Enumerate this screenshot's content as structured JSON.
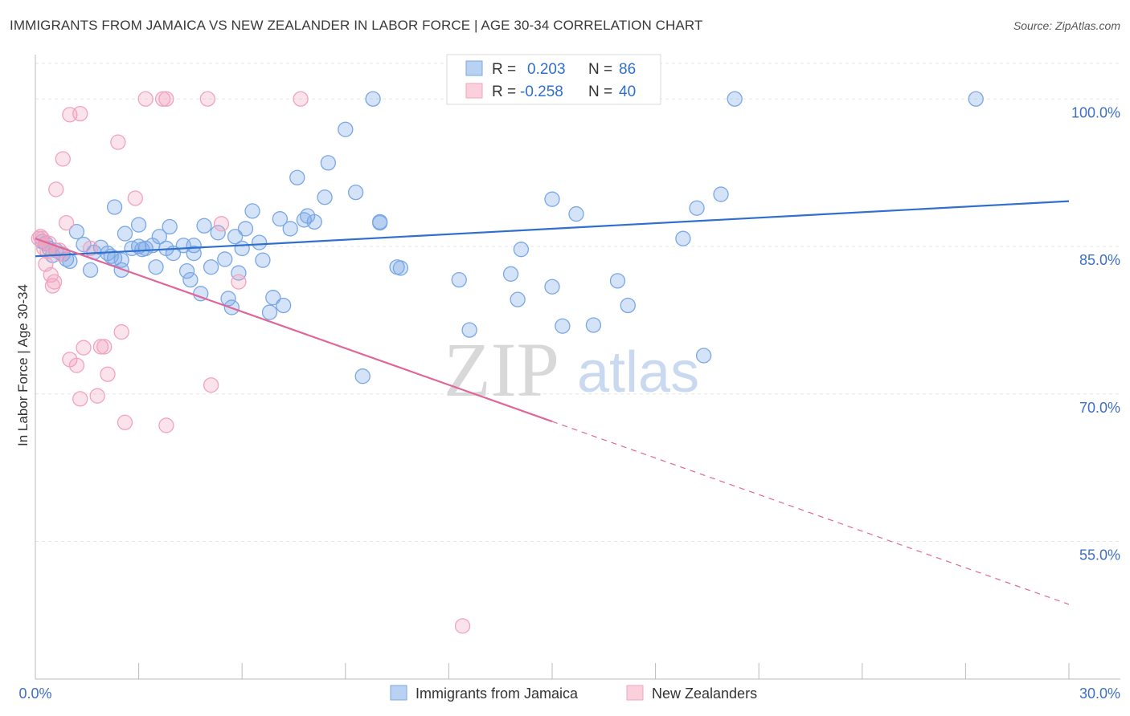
{
  "title": "IMMIGRANTS FROM JAMAICA VS NEW ZEALANDER IN LABOR FORCE | AGE 30-34 CORRELATION CHART",
  "source": "Source: ZipAtlas.com",
  "chart_data": {
    "type": "scatter",
    "xlabel": "",
    "ylabel": "In Labor Force | Age 30-34",
    "xlim": [
      0.0,
      30.0
    ],
    "ylim": [
      41.0,
      105.0
    ],
    "x_tick_labels": [
      "0.0%",
      "30.0%"
    ],
    "y_ticks": [
      {
        "value": 100.0,
        "label": "100.0%"
      },
      {
        "value": 85.0,
        "label": "85.0%"
      },
      {
        "value": 70.0,
        "label": "70.0%"
      },
      {
        "value": 55.0,
        "label": "55.0%"
      }
    ],
    "grid": true,
    "legend_position": "bottom",
    "stats": [
      {
        "r_label": "R =",
        "r_value": "0.203",
        "n_label": "N =",
        "n_value": "86"
      },
      {
        "r_label": "R =",
        "r_value": "-0.258",
        "n_label": "N =",
        "n_value": "40"
      }
    ],
    "series": [
      {
        "name": "Immigrants from Jamaica",
        "color": "#7aa7e6",
        "line_color": "#2f6fce",
        "trend": {
          "x": [
            0.0,
            30.0
          ],
          "y": [
            84.0,
            89.6
          ]
        },
        "points": [
          [
            0.2,
            85.5
          ],
          [
            0.3,
            85.3
          ],
          [
            0.4,
            84.8
          ],
          [
            0.5,
            84.1
          ],
          [
            0.6,
            84.6
          ],
          [
            0.8,
            84.2
          ],
          [
            0.9,
            83.7
          ],
          [
            1.0,
            83.5
          ],
          [
            1.2,
            86.5
          ],
          [
            1.4,
            85.2
          ],
          [
            1.6,
            82.6
          ],
          [
            1.7,
            84.4
          ],
          [
            1.9,
            84.9
          ],
          [
            2.1,
            84.3
          ],
          [
            2.2,
            84.0
          ],
          [
            2.3,
            83.8
          ],
          [
            2.5,
            83.6
          ],
          [
            2.3,
            89.0
          ],
          [
            2.5,
            82.6
          ],
          [
            2.6,
            86.3
          ],
          [
            2.8,
            84.8
          ],
          [
            3.0,
            85.0
          ],
          [
            3.0,
            87.2
          ],
          [
            3.1,
            84.7
          ],
          [
            3.2,
            84.8
          ],
          [
            3.4,
            85.1
          ],
          [
            3.5,
            82.9
          ],
          [
            3.6,
            86.0
          ],
          [
            3.8,
            84.8
          ],
          [
            3.9,
            87.0
          ],
          [
            4.0,
            84.3
          ],
          [
            4.3,
            85.1
          ],
          [
            4.4,
            82.5
          ],
          [
            4.5,
            81.6
          ],
          [
            4.6,
            84.3
          ],
          [
            4.6,
            85.1
          ],
          [
            4.8,
            80.2
          ],
          [
            4.9,
            87.1
          ],
          [
            5.1,
            82.9
          ],
          [
            5.3,
            86.4
          ],
          [
            5.5,
            83.7
          ],
          [
            5.6,
            79.7
          ],
          [
            5.7,
            78.8
          ],
          [
            5.8,
            86.0
          ],
          [
            5.9,
            82.3
          ],
          [
            6.0,
            84.8
          ],
          [
            6.1,
            86.8
          ],
          [
            6.3,
            88.6
          ],
          [
            6.5,
            85.4
          ],
          [
            6.6,
            83.6
          ],
          [
            6.8,
            78.3
          ],
          [
            6.9,
            79.8
          ],
          [
            7.1,
            87.8
          ],
          [
            7.2,
            79.0
          ],
          [
            7.4,
            86.8
          ],
          [
            7.6,
            92.0
          ],
          [
            7.8,
            87.7
          ],
          [
            7.9,
            88.1
          ],
          [
            8.1,
            87.5
          ],
          [
            8.4,
            90.0
          ],
          [
            8.5,
            93.5
          ],
          [
            9.0,
            96.9
          ],
          [
            9.3,
            90.5
          ],
          [
            9.5,
            71.8
          ],
          [
            9.8,
            100.0
          ],
          [
            10.0,
            87.5
          ],
          [
            10.0,
            87.4
          ],
          [
            10.5,
            82.9
          ],
          [
            10.6,
            82.8
          ],
          [
            12.3,
            81.6
          ],
          [
            12.6,
            76.5
          ],
          [
            13.8,
            82.2
          ],
          [
            14.0,
            79.6
          ],
          [
            14.1,
            84.7
          ],
          [
            15.0,
            89.8
          ],
          [
            15.0,
            80.9
          ],
          [
            15.3,
            76.9
          ],
          [
            15.7,
            88.3
          ],
          [
            16.2,
            77.0
          ],
          [
            16.9,
            81.5
          ],
          [
            17.2,
            79.0
          ],
          [
            18.8,
            85.8
          ],
          [
            19.2,
            88.9
          ],
          [
            19.4,
            73.9
          ],
          [
            19.9,
            90.3
          ],
          [
            20.3,
            100.0
          ],
          [
            27.3,
            100.0
          ]
        ]
      },
      {
        "name": "New Zealanders",
        "color": "#f2a3bd",
        "line_color": "#e0669a",
        "trend": {
          "x": [
            0.0,
            15.0
          ],
          "y": [
            85.8,
            67.2
          ]
        },
        "trend_dashed": {
          "x": [
            15.0,
            30.0
          ],
          "y": [
            67.2,
            48.6
          ]
        },
        "points": [
          [
            0.1,
            85.8
          ],
          [
            0.15,
            86.0
          ],
          [
            0.2,
            85.8
          ],
          [
            0.25,
            84.8
          ],
          [
            0.3,
            83.2
          ],
          [
            0.35,
            84.5
          ],
          [
            0.4,
            85.3
          ],
          [
            0.45,
            82.1
          ],
          [
            0.5,
            81.0
          ],
          [
            0.55,
            81.4
          ],
          [
            0.6,
            90.8
          ],
          [
            0.7,
            84.6
          ],
          [
            0.75,
            84.2
          ],
          [
            0.8,
            93.9
          ],
          [
            0.9,
            87.4
          ],
          [
            1.0,
            73.5
          ],
          [
            1.0,
            98.4
          ],
          [
            1.2,
            72.9
          ],
          [
            1.3,
            98.5
          ],
          [
            1.3,
            69.5
          ],
          [
            1.4,
            74.7
          ],
          [
            1.6,
            84.8
          ],
          [
            1.8,
            69.8
          ],
          [
            1.9,
            74.8
          ],
          [
            2.0,
            74.8
          ],
          [
            2.1,
            72.0
          ],
          [
            2.4,
            95.6
          ],
          [
            2.5,
            76.3
          ],
          [
            2.6,
            67.1
          ],
          [
            2.9,
            89.9
          ],
          [
            3.2,
            100.0
          ],
          [
            3.7,
            100.0
          ],
          [
            3.8,
            66.8
          ],
          [
            3.8,
            100.0
          ],
          [
            5.0,
            100.0
          ],
          [
            5.1,
            70.9
          ],
          [
            5.4,
            87.3
          ],
          [
            5.9,
            81.4
          ],
          [
            7.7,
            100.0
          ],
          [
            12.4,
            46.4
          ]
        ]
      }
    ]
  },
  "legend": [
    {
      "label": "Immigrants from Jamaica",
      "color": "#7aa7e6"
    },
    {
      "label": "New Zealanders",
      "color": "#f2a3bd"
    }
  ],
  "watermark": {
    "zip": "ZIP",
    "atlas": "atlas"
  }
}
